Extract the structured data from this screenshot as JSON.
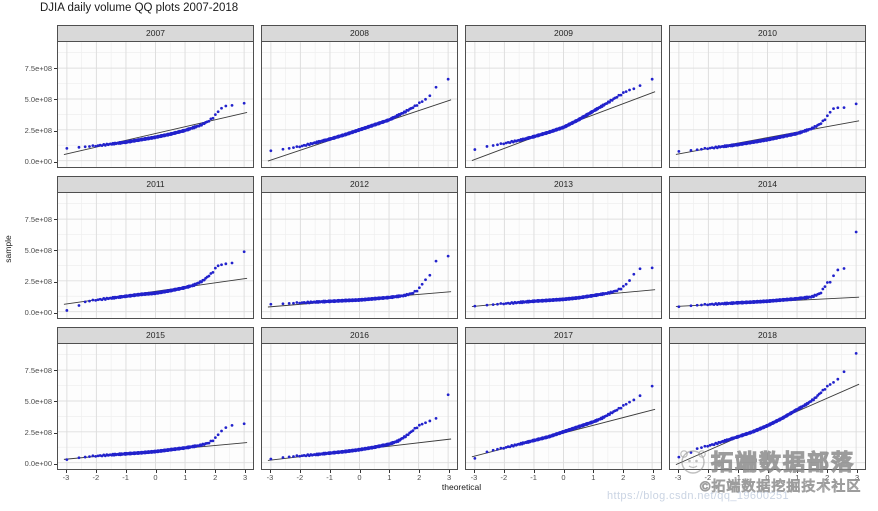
{
  "title": "DJIA daily volume QQ plots 2007-2018",
  "watermark": {
    "brand": "拓端数据部落",
    "subtitle": "©拓端数据挖掘技术社区",
    "url": "https://blog.csdn.net/qq_19600251"
  },
  "colors": {
    "point": "#2222cc",
    "ref_line": "#3a3a3a",
    "strip_bg": "#d9d9d9",
    "panel_border": "#4f4f4f",
    "grid_major": "#dedede",
    "grid_minor": "#efefef",
    "tick_text": "#4d4d4d"
  },
  "chart_data": {
    "type": "scatter",
    "subtype": "qq-plot-facets",
    "title": "DJIA daily volume QQ plots 2007-2018",
    "xlabel": "theoretical",
    "ylabel": "sample",
    "legend_position": "none",
    "grid": true,
    "facet_layout": {
      "rows": 3,
      "cols": 4
    },
    "x_range": [
      -3.3,
      3.3
    ],
    "y_range_1e8": [
      -0.5,
      9.6
    ],
    "x_ticks": [
      -3,
      -2,
      -1,
      0,
      1,
      2,
      3
    ],
    "x_tick_labels": [
      "-3",
      "-2",
      "-1",
      "0",
      "1",
      "2",
      "3"
    ],
    "y_ticks_1e8": [
      7.5,
      5.0,
      2.5,
      0.0
    ],
    "y_tick_labels": [
      "7.5e+08",
      "5.0e+08",
      "2.5e+08",
      "0.0e+00"
    ],
    "y_unit": 100000000,
    "facets": [
      {
        "year": "2007",
        "ref_line": {
          "slope_1e8": 0.55,
          "intercept_1e8": 2.2
        },
        "qq_points_1e8": [
          [
            -3.0,
            1.0
          ],
          [
            -2.5,
            1.1
          ],
          [
            -2.0,
            1.2
          ],
          [
            -1.5,
            1.35
          ],
          [
            -1.0,
            1.5
          ],
          [
            -0.5,
            1.7
          ],
          [
            0.0,
            1.9
          ],
          [
            0.5,
            2.15
          ],
          [
            1.0,
            2.45
          ],
          [
            1.5,
            2.85
          ],
          [
            1.8,
            3.2
          ],
          [
            2.0,
            3.6
          ],
          [
            2.2,
            4.2
          ],
          [
            2.4,
            4.45
          ],
          [
            2.7,
            4.5
          ],
          [
            3.0,
            4.65
          ]
        ]
      },
      {
        "year": "2008",
        "ref_line": {
          "slope_1e8": 0.8,
          "intercept_1e8": 2.45
        },
        "qq_points_1e8": [
          [
            -3.0,
            0.8
          ],
          [
            -2.5,
            0.95
          ],
          [
            -2.0,
            1.15
          ],
          [
            -1.5,
            1.45
          ],
          [
            -1.0,
            1.75
          ],
          [
            -0.5,
            2.1
          ],
          [
            0.0,
            2.5
          ],
          [
            0.5,
            2.9
          ],
          [
            1.0,
            3.3
          ],
          [
            1.5,
            3.9
          ],
          [
            1.8,
            4.3
          ],
          [
            2.0,
            4.6
          ],
          [
            2.2,
            4.9
          ],
          [
            2.5,
            5.5
          ],
          [
            2.7,
            6.5
          ],
          [
            3.0,
            6.6
          ]
        ]
      },
      {
        "year": "2009",
        "ref_line": {
          "slope_1e8": 0.9,
          "intercept_1e8": 2.8
        },
        "qq_points_1e8": [
          [
            -3.0,
            0.9
          ],
          [
            -2.6,
            1.15
          ],
          [
            -2.2,
            1.3
          ],
          [
            -1.8,
            1.5
          ],
          [
            -1.4,
            1.7
          ],
          [
            -1.0,
            1.95
          ],
          [
            -0.5,
            2.3
          ],
          [
            0.0,
            2.7
          ],
          [
            0.5,
            3.3
          ],
          [
            1.0,
            4.0
          ],
          [
            1.5,
            4.7
          ],
          [
            1.9,
            5.3
          ],
          [
            2.2,
            5.7
          ],
          [
            2.5,
            5.9
          ],
          [
            2.7,
            6.3
          ],
          [
            3.0,
            6.6
          ]
        ]
      },
      {
        "year": "2010",
        "ref_line": {
          "slope_1e8": 0.44,
          "intercept_1e8": 1.87
        },
        "qq_points_1e8": [
          [
            -3.0,
            0.75
          ],
          [
            -2.5,
            0.85
          ],
          [
            -2.0,
            1.0
          ],
          [
            -1.5,
            1.15
          ],
          [
            -1.0,
            1.3
          ],
          [
            -0.5,
            1.5
          ],
          [
            0.0,
            1.7
          ],
          [
            0.5,
            1.95
          ],
          [
            1.0,
            2.2
          ],
          [
            1.5,
            2.6
          ],
          [
            1.8,
            3.0
          ],
          [
            2.0,
            3.5
          ],
          [
            2.2,
            4.2
          ],
          [
            2.4,
            4.3
          ],
          [
            2.7,
            4.3
          ],
          [
            3.0,
            4.6
          ]
        ]
      },
      {
        "year": "2011",
        "ref_line": {
          "slope_1e8": 0.34,
          "intercept_1e8": 1.65
        },
        "qq_points_1e8": [
          [
            -3.0,
            0.1
          ],
          [
            -2.7,
            0.2
          ],
          [
            -2.5,
            0.75
          ],
          [
            -2.0,
            0.95
          ],
          [
            -1.5,
            1.1
          ],
          [
            -1.0,
            1.25
          ],
          [
            -0.5,
            1.4
          ],
          [
            0.0,
            1.5
          ],
          [
            0.5,
            1.7
          ],
          [
            1.0,
            1.95
          ],
          [
            1.3,
            2.15
          ],
          [
            1.6,
            2.5
          ],
          [
            1.9,
            3.1
          ],
          [
            2.1,
            3.7
          ],
          [
            2.3,
            3.85
          ],
          [
            2.6,
            3.95
          ],
          [
            2.9,
            4.85
          ]
        ]
      },
      {
        "year": "2012",
        "ref_line": {
          "slope_1e8": 0.2,
          "intercept_1e8": 1.0
        },
        "qq_points_1e8": [
          [
            -3.0,
            0.6
          ],
          [
            -2.5,
            0.65
          ],
          [
            -2.0,
            0.72
          ],
          [
            -1.5,
            0.78
          ],
          [
            -1.0,
            0.84
          ],
          [
            -0.5,
            0.9
          ],
          [
            0.0,
            0.95
          ],
          [
            0.5,
            1.05
          ],
          [
            1.0,
            1.15
          ],
          [
            1.5,
            1.3
          ],
          [
            1.8,
            1.5
          ],
          [
            2.0,
            1.8
          ],
          [
            2.2,
            2.5
          ],
          [
            2.4,
            3.0
          ],
          [
            2.6,
            4.15
          ],
          [
            2.8,
            4.3
          ],
          [
            3.0,
            4.5
          ]
        ]
      },
      {
        "year": "2013",
        "ref_line": {
          "slope_1e8": 0.22,
          "intercept_1e8": 1.1
        },
        "qq_points_1e8": [
          [
            -3.0,
            0.45
          ],
          [
            -2.5,
            0.55
          ],
          [
            -2.0,
            0.65
          ],
          [
            -1.5,
            0.75
          ],
          [
            -1.0,
            0.85
          ],
          [
            -0.5,
            0.92
          ],
          [
            0.0,
            1.0
          ],
          [
            0.5,
            1.12
          ],
          [
            1.0,
            1.3
          ],
          [
            1.5,
            1.5
          ],
          [
            1.8,
            1.7
          ],
          [
            2.0,
            1.95
          ],
          [
            2.2,
            2.4
          ],
          [
            2.4,
            3.1
          ],
          [
            2.6,
            3.5
          ],
          [
            2.9,
            3.55
          ]
        ]
      },
      {
        "year": "2014",
        "ref_line": {
          "slope_1e8": 0.12,
          "intercept_1e8": 0.8
        },
        "qq_points_1e8": [
          [
            -3.0,
            0.4
          ],
          [
            -2.5,
            0.5
          ],
          [
            -2.0,
            0.58
          ],
          [
            -1.5,
            0.65
          ],
          [
            -1.0,
            0.72
          ],
          [
            -0.5,
            0.78
          ],
          [
            0.0,
            0.85
          ],
          [
            0.5,
            0.95
          ],
          [
            1.0,
            1.05
          ],
          [
            1.5,
            1.2
          ],
          [
            1.8,
            1.5
          ],
          [
            2.0,
            2.3
          ],
          [
            2.15,
            2.4
          ],
          [
            2.3,
            3.3
          ],
          [
            2.45,
            3.45
          ],
          [
            2.6,
            3.5
          ],
          [
            3.0,
            6.45
          ]
        ]
      },
      {
        "year": "2015",
        "ref_line": {
          "slope_1e8": 0.22,
          "intercept_1e8": 0.95
        },
        "qq_points_1e8": [
          [
            -3.0,
            0.25
          ],
          [
            -2.6,
            0.4
          ],
          [
            -2.2,
            0.5
          ],
          [
            -1.8,
            0.58
          ],
          [
            -1.4,
            0.65
          ],
          [
            -1.0,
            0.72
          ],
          [
            -0.5,
            0.8
          ],
          [
            0.0,
            0.9
          ],
          [
            0.5,
            1.05
          ],
          [
            1.0,
            1.2
          ],
          [
            1.5,
            1.4
          ],
          [
            1.8,
            1.6
          ],
          [
            2.0,
            1.9
          ],
          [
            2.2,
            2.5
          ],
          [
            2.35,
            2.8
          ],
          [
            2.5,
            3.0
          ],
          [
            2.7,
            3.05
          ],
          [
            3.0,
            3.15
          ]
        ]
      },
      {
        "year": "2016",
        "ref_line": {
          "slope_1e8": 0.28,
          "intercept_1e8": 1.05
        },
        "qq_points_1e8": [
          [
            -3.0,
            0.3
          ],
          [
            -2.5,
            0.45
          ],
          [
            -2.0,
            0.55
          ],
          [
            -1.5,
            0.65
          ],
          [
            -1.0,
            0.78
          ],
          [
            -0.5,
            0.9
          ],
          [
            0.0,
            1.05
          ],
          [
            0.5,
            1.25
          ],
          [
            1.0,
            1.5
          ],
          [
            1.3,
            1.75
          ],
          [
            1.6,
            2.2
          ],
          [
            1.9,
            2.8
          ],
          [
            2.1,
            3.1
          ],
          [
            2.3,
            3.3
          ],
          [
            2.5,
            3.5
          ],
          [
            2.7,
            3.7
          ],
          [
            3.0,
            5.5
          ]
        ]
      },
      {
        "year": "2017",
        "ref_line": {
          "slope_1e8": 0.62,
          "intercept_1e8": 2.4
        },
        "qq_points_1e8": [
          [
            -3.0,
            0.35
          ],
          [
            -2.7,
            0.8
          ],
          [
            -2.4,
            1.0
          ],
          [
            -2.0,
            1.2
          ],
          [
            -1.5,
            1.5
          ],
          [
            -1.0,
            1.8
          ],
          [
            -0.5,
            2.1
          ],
          [
            0.0,
            2.5
          ],
          [
            0.5,
            2.9
          ],
          [
            1.0,
            3.3
          ],
          [
            1.3,
            3.6
          ],
          [
            1.6,
            4.0
          ],
          [
            1.9,
            4.4
          ],
          [
            2.1,
            4.7
          ],
          [
            2.3,
            5.0
          ],
          [
            2.5,
            5.2
          ],
          [
            2.7,
            5.7
          ],
          [
            3.0,
            6.2
          ]
        ]
      },
      {
        "year": "2018",
        "ref_line": {
          "slope_1e8": 1.05,
          "intercept_1e8": 3.1
        },
        "qq_points_1e8": [
          [
            -3.0,
            0.45
          ],
          [
            -2.75,
            0.5
          ],
          [
            -2.45,
            1.1
          ],
          [
            -2.1,
            1.3
          ],
          [
            -1.8,
            1.5
          ],
          [
            -1.4,
            1.8
          ],
          [
            -1.0,
            2.1
          ],
          [
            -0.5,
            2.5
          ],
          [
            0.0,
            3.0
          ],
          [
            0.5,
            3.6
          ],
          [
            1.0,
            4.3
          ],
          [
            1.3,
            4.7
          ],
          [
            1.6,
            5.2
          ],
          [
            1.9,
            5.9
          ],
          [
            2.1,
            6.3
          ],
          [
            2.3,
            6.6
          ],
          [
            2.5,
            7.0
          ],
          [
            2.65,
            7.6
          ],
          [
            2.8,
            8.1
          ],
          [
            3.0,
            8.85
          ]
        ]
      }
    ]
  }
}
